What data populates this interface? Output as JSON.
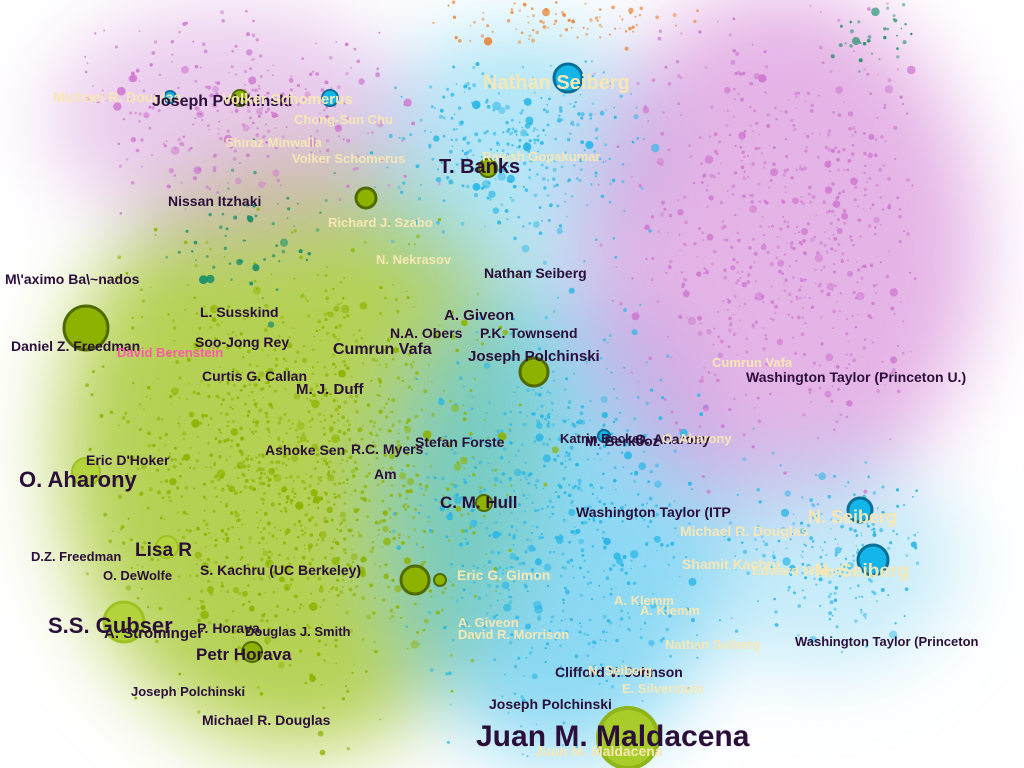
{
  "network": {
    "clusters": [
      {
        "name": "green",
        "color": "#8db300"
      },
      {
        "name": "cyan",
        "color": "#29b6e6"
      },
      {
        "name": "magenta",
        "color": "#cf78d0"
      },
      {
        "name": "orange",
        "color": "#e8873d"
      },
      {
        "name": "teal",
        "color": "#1b8f6a"
      }
    ],
    "labels": [
      {
        "id": "l01",
        "text": "Michael R. Douglas",
        "tone": "light"
      },
      {
        "id": "l02",
        "text": "Joseph Polchinski",
        "tone": "dark"
      },
      {
        "id": "l03",
        "text": "Volker Schomerus",
        "tone": "light"
      },
      {
        "id": "l04",
        "text": "Chong-Sun Chu",
        "tone": "light"
      },
      {
        "id": "l05",
        "text": "Shiraz Minwalla",
        "tone": "light"
      },
      {
        "id": "l06",
        "text": "Volker Schomerus",
        "tone": "light"
      },
      {
        "id": "l07",
        "text": "Nathan Seiberg",
        "tone": "light"
      },
      {
        "id": "l08",
        "text": "Rajesh Gopakumar",
        "tone": "light"
      },
      {
        "id": "l09",
        "text": "T. Banks",
        "tone": "dark"
      },
      {
        "id": "l10",
        "text": "Nissan Itzhaki",
        "tone": "dark"
      },
      {
        "id": "l11",
        "text": "Richard J. Szabo",
        "tone": "light"
      },
      {
        "id": "l12",
        "text": "N. Nekrasov",
        "tone": "light"
      },
      {
        "id": "l13",
        "text": "Nathan Seiberg",
        "tone": "dark"
      },
      {
        "id": "l14",
        "text": "M\\'aximo Ba\\~nados",
        "tone": "dark"
      },
      {
        "id": "l15",
        "text": "L. Susskind",
        "tone": "dark"
      },
      {
        "id": "l16",
        "text": "A. Giveon",
        "tone": "dark"
      },
      {
        "id": "l17",
        "text": "N.A. Obers",
        "tone": "dark"
      },
      {
        "id": "l18",
        "text": "P.K. Townsend",
        "tone": "dark"
      },
      {
        "id": "l19",
        "text": "Daniel Z. Freedman",
        "tone": "dark"
      },
      {
        "id": "l20",
        "text": "David Berenstein",
        "tone": "pink"
      },
      {
        "id": "l21",
        "text": "Soo-Jong Rey",
        "tone": "dark"
      },
      {
        "id": "l22",
        "text": "Cumrun Vafa",
        "tone": "dark"
      },
      {
        "id": "l23",
        "text": "Joseph Polchinski",
        "tone": "dark"
      },
      {
        "id": "l24",
        "text": "Cumrun Vafa",
        "tone": "light"
      },
      {
        "id": "l25",
        "text": "Washington Taylor (Princeton U.)",
        "tone": "dark"
      },
      {
        "id": "l26",
        "text": "Curtis G. Callan",
        "tone": "dark"
      },
      {
        "id": "l27",
        "text": "M. J. Duff",
        "tone": "dark"
      },
      {
        "id": "l28",
        "text": "Ashoke Sen",
        "tone": "dark"
      },
      {
        "id": "l29",
        "text": "R.C. Myers",
        "tone": "dark"
      },
      {
        "id": "l30",
        "text": "Stefan Forste",
        "tone": "dark"
      },
      {
        "id": "l31",
        "text": "Katrin Becker",
        "tone": "dark"
      },
      {
        "id": "l32",
        "text": "M. Berkooz",
        "tone": "dark"
      },
      {
        "id": "l33",
        "text": "O. Aharony",
        "tone": "dark"
      },
      {
        "id": "l34",
        "text": "O. Aharony",
        "tone": "light"
      },
      {
        "id": "l35",
        "text": "Eric D'Hoker",
        "tone": "dark"
      },
      {
        "id": "l36",
        "text": "Am",
        "tone": "dark"
      },
      {
        "id": "l37",
        "text": "O. Aharony",
        "tone": "dark"
      },
      {
        "id": "l38",
        "text": "C. M. Hull",
        "tone": "dark"
      },
      {
        "id": "l39",
        "text": "Washington Taylor (ITP",
        "tone": "dark"
      },
      {
        "id": "l40",
        "text": "N. Seiberg",
        "tone": "light"
      },
      {
        "id": "l41",
        "text": "Michael R. Douglas",
        "tone": "light"
      },
      {
        "id": "l42",
        "text": "D.Z. Freedman",
        "tone": "dark"
      },
      {
        "id": "l43",
        "text": "Lisa R",
        "tone": "dark"
      },
      {
        "id": "l44",
        "text": "O. DeWolfe",
        "tone": "dark"
      },
      {
        "id": "l45",
        "text": "S. Kachru (UC Berkeley)",
        "tone": "dark"
      },
      {
        "id": "l46",
        "text": "Eric G. Gimon",
        "tone": "light"
      },
      {
        "id": "l47",
        "text": "Shamit Kachru",
        "tone": "light"
      },
      {
        "id": "l48",
        "text": "Edward Witten",
        "tone": "light"
      },
      {
        "id": "l49",
        "text": "N. Seiberg",
        "tone": "light"
      },
      {
        "id": "l50",
        "text": "A. Klemm",
        "tone": "light"
      },
      {
        "id": "l51",
        "text": "A. Klemm",
        "tone": "light"
      },
      {
        "id": "l52",
        "text": "S.S. Gubser",
        "tone": "dark"
      },
      {
        "id": "l53",
        "text": "A. Strominger",
        "tone": "dark"
      },
      {
        "id": "l54",
        "text": "P. Horava",
        "tone": "dark"
      },
      {
        "id": "l55",
        "text": "Douglas J. Smith",
        "tone": "dark"
      },
      {
        "id": "l56",
        "text": "A. Giveon",
        "tone": "light"
      },
      {
        "id": "l57",
        "text": "David R. Morrison",
        "tone": "light"
      },
      {
        "id": "l58",
        "text": "Nathan Seiberg",
        "tone": "light"
      },
      {
        "id": "l59",
        "text": "Washington Taylor (Princeton",
        "tone": "dark"
      },
      {
        "id": "l60",
        "text": "Petr Horava",
        "tone": "dark"
      },
      {
        "id": "l61",
        "text": "Clifford V. Johnson",
        "tone": "dark"
      },
      {
        "id": "l62",
        "text": "N. Seiberg",
        "tone": "light"
      },
      {
        "id": "l63",
        "text": "E. Silverstein",
        "tone": "light"
      },
      {
        "id": "l64",
        "text": "Joseph Polchinski",
        "tone": "dark"
      },
      {
        "id": "l65",
        "text": "Joseph Polchinski",
        "tone": "dark"
      },
      {
        "id": "l66",
        "text": "Michael R. Douglas",
        "tone": "dark"
      },
      {
        "id": "l67",
        "text": "Juan M. Maldacena",
        "tone": "dark"
      },
      {
        "id": "l68",
        "text": "Juan M. Maldacena",
        "tone": "light"
      }
    ]
  }
}
